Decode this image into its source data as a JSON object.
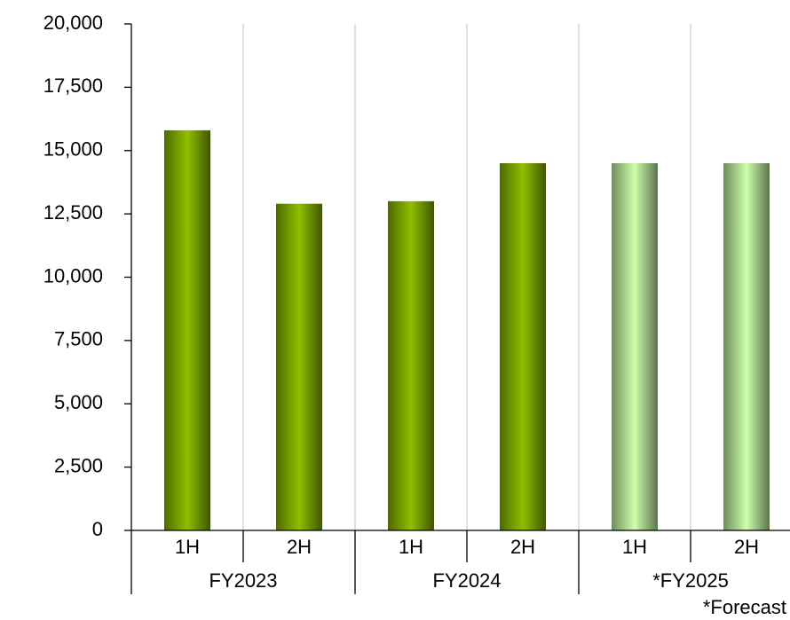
{
  "chart_data": {
    "type": "bar",
    "categories": [
      "1H",
      "2H",
      "1H",
      "2H",
      "1H",
      "2H"
    ],
    "groups": [
      "FY2023",
      "FY2024",
      "*FY2025"
    ],
    "values": [
      15800,
      12900,
      13000,
      14500,
      14500,
      14500
    ],
    "colors": [
      "#8fbf00",
      "#8fbf00",
      "#8fbf00",
      "#8fbf00",
      "#ccffaa",
      "#ccffaa"
    ],
    "ylim": [
      0,
      20000
    ],
    "yticks": [
      0,
      {
        "value": 2500,
        "label": "2,500"
      },
      {
        "value": 5000,
        "label": "5,000"
      },
      {
        "value": 7500,
        "label": "7,500"
      },
      {
        "value": 10000,
        "label": "10,000"
      },
      {
        "value": 12500,
        "label": "12,500"
      },
      {
        "value": 15000,
        "label": "15,000"
      },
      {
        "value": 17500,
        "label": "17,500"
      },
      {
        "value": 20000,
        "label": "20,000"
      }
    ],
    "annotation": "*Forecast",
    "grid": true
  }
}
